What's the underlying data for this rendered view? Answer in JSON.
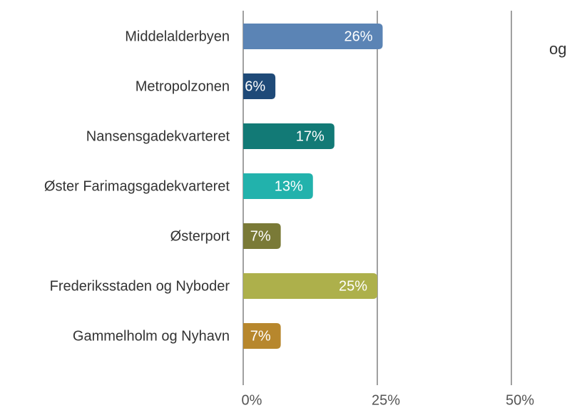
{
  "chart_data": {
    "type": "bar",
    "orientation": "horizontal",
    "categories": [
      "Middelalderbyen",
      "Metropolzonen",
      "Nansensgadekvarteret",
      "Øster Farimagsgadekvarteret",
      "Østerport",
      "Frederiksstaden og Nyboder",
      "Gammelholm og Nyhavn"
    ],
    "values": [
      26,
      6,
      17,
      13,
      7,
      25,
      7
    ],
    "value_labels": [
      "26%",
      "6%",
      "17%",
      "13%",
      "7%",
      "25%",
      "7%"
    ],
    "colors": [
      "#5b84b5",
      "#1f4a78",
      "#127a76",
      "#22b2ac",
      "#7a7a37",
      "#adb04b",
      "#b7872d"
    ],
    "xlim": [
      0,
      50
    ],
    "xticks": [
      {
        "value": 0,
        "label": "0%"
      },
      {
        "value": 25,
        "label": "25%"
      },
      {
        "value": 50,
        "label": "50%"
      }
    ],
    "grid": true,
    "annotation": "og"
  }
}
